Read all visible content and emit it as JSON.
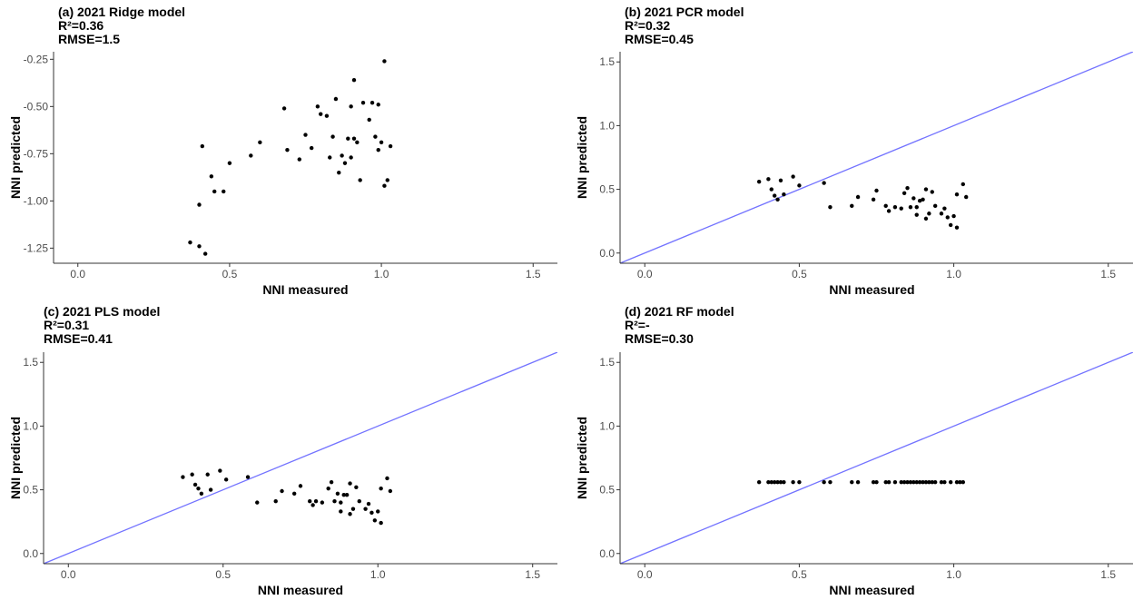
{
  "colors": {
    "points": "#000000",
    "reference_line": "#7373ff",
    "axis": "#333333",
    "tick_text": "#4d4d4d"
  },
  "chart_data": [
    {
      "type": "scatter",
      "title": "(a) 2021 Ridge model",
      "r2": "R²=0.36",
      "rmse": "RMSE=1.5",
      "xlabel": "NNI measured",
      "ylabel": "NNI predicted",
      "xlim": [
        -0.08,
        1.58
      ],
      "ylim": [
        -1.33,
        -0.21
      ],
      "x_ticks": [
        0.0,
        0.5,
        1.0,
        1.5
      ],
      "x_tick_labels": [
        "0.0",
        "0.5",
        "1.0",
        "1.5"
      ],
      "y_ticks": [
        -1.25,
        -1.0,
        -0.75,
        -0.5,
        -0.25
      ],
      "y_tick_labels": [
        "-1.25",
        "-1.00",
        "-0.75",
        "-0.50",
        "-0.25"
      ],
      "reference_line": false,
      "grid": false,
      "points": [
        [
          0.37,
          -1.22
        ],
        [
          0.4,
          -1.24
        ],
        [
          0.42,
          -1.28
        ],
        [
          0.4,
          -1.02
        ],
        [
          0.41,
          -0.71
        ],
        [
          0.44,
          -0.87
        ],
        [
          0.45,
          -0.95
        ],
        [
          0.48,
          -0.95
        ],
        [
          0.5,
          -0.8
        ],
        [
          0.57,
          -0.76
        ],
        [
          0.6,
          -0.69
        ],
        [
          0.68,
          -0.51
        ],
        [
          0.69,
          -0.73
        ],
        [
          0.73,
          -0.78
        ],
        [
          0.75,
          -0.65
        ],
        [
          0.77,
          -0.72
        ],
        [
          0.79,
          -0.5
        ],
        [
          0.8,
          -0.54
        ],
        [
          0.82,
          -0.55
        ],
        [
          0.83,
          -0.77
        ],
        [
          0.84,
          -0.66
        ],
        [
          0.85,
          -0.46
        ],
        [
          0.86,
          -0.85
        ],
        [
          0.87,
          -0.76
        ],
        [
          0.88,
          -0.8
        ],
        [
          0.89,
          -0.67
        ],
        [
          0.9,
          -0.5
        ],
        [
          0.9,
          -0.77
        ],
        [
          0.91,
          -0.36
        ],
        [
          0.91,
          -0.67
        ],
        [
          0.92,
          -0.69
        ],
        [
          0.93,
          -0.89
        ],
        [
          0.94,
          -0.48
        ],
        [
          0.96,
          -0.57
        ],
        [
          0.97,
          -0.48
        ],
        [
          0.98,
          -0.66
        ],
        [
          0.99,
          -0.49
        ],
        [
          0.99,
          -0.73
        ],
        [
          1.0,
          -0.69
        ],
        [
          1.01,
          -0.26
        ],
        [
          1.01,
          -0.92
        ],
        [
          1.02,
          -0.89
        ],
        [
          1.03,
          -0.71
        ]
      ]
    },
    {
      "type": "scatter",
      "title": "(b) 2021 PCR model",
      "r2": "R²=0.32",
      "rmse": "RMSE=0.45",
      "xlabel": "NNI measured",
      "ylabel": "NNI predicted",
      "xlim": [
        -0.08,
        1.58
      ],
      "ylim": [
        -0.08,
        1.58
      ],
      "x_ticks": [
        0.0,
        0.5,
        1.0,
        1.5
      ],
      "x_tick_labels": [
        "0.0",
        "0.5",
        "1.0",
        "1.5"
      ],
      "y_ticks": [
        0.0,
        0.5,
        1.0,
        1.5
      ],
      "y_tick_labels": [
        "0.0",
        "0.5",
        "1.0",
        "1.5"
      ],
      "reference_line": true,
      "grid": false,
      "points": [
        [
          0.37,
          0.56
        ],
        [
          0.4,
          0.58
        ],
        [
          0.41,
          0.5
        ],
        [
          0.42,
          0.45
        ],
        [
          0.43,
          0.42
        ],
        [
          0.44,
          0.57
        ],
        [
          0.45,
          0.46
        ],
        [
          0.48,
          0.6
        ],
        [
          0.5,
          0.53
        ],
        [
          0.58,
          0.55
        ],
        [
          0.6,
          0.36
        ],
        [
          0.67,
          0.37
        ],
        [
          0.69,
          0.44
        ],
        [
          0.74,
          0.42
        ],
        [
          0.75,
          0.49
        ],
        [
          0.78,
          0.37
        ],
        [
          0.79,
          0.33
        ],
        [
          0.81,
          0.36
        ],
        [
          0.83,
          0.35
        ],
        [
          0.84,
          0.47
        ],
        [
          0.85,
          0.51
        ],
        [
          0.86,
          0.36
        ],
        [
          0.87,
          0.43
        ],
        [
          0.88,
          0.3
        ],
        [
          0.88,
          0.36
        ],
        [
          0.89,
          0.41
        ],
        [
          0.9,
          0.42
        ],
        [
          0.91,
          0.27
        ],
        [
          0.91,
          0.5
        ],
        [
          0.92,
          0.31
        ],
        [
          0.93,
          0.48
        ],
        [
          0.94,
          0.37
        ],
        [
          0.96,
          0.31
        ],
        [
          0.97,
          0.35
        ],
        [
          0.98,
          0.28
        ],
        [
          0.99,
          0.22
        ],
        [
          1.0,
          0.29
        ],
        [
          1.01,
          0.2
        ],
        [
          1.01,
          0.46
        ],
        [
          1.03,
          0.54
        ],
        [
          1.04,
          0.44
        ]
      ]
    },
    {
      "type": "scatter",
      "title": "(c) 2021 PLS model",
      "r2": "R²=0.31",
      "rmse": "RMSE=0.41",
      "xlabel": "NNI measured",
      "ylabel": "NNI predicted",
      "xlim": [
        -0.08,
        1.58
      ],
      "ylim": [
        -0.08,
        1.58
      ],
      "x_ticks": [
        0.0,
        0.5,
        1.0,
        1.5
      ],
      "x_tick_labels": [
        "0.0",
        "0.5",
        "1.0",
        "1.5"
      ],
      "y_ticks": [
        0.0,
        0.5,
        1.0,
        1.5
      ],
      "y_tick_labels": [
        "0.0",
        "0.5",
        "1.0",
        "1.5"
      ],
      "reference_line": true,
      "grid": false,
      "points": [
        [
          0.37,
          0.6
        ],
        [
          0.4,
          0.62
        ],
        [
          0.41,
          0.54
        ],
        [
          0.42,
          0.51
        ],
        [
          0.43,
          0.47
        ],
        [
          0.45,
          0.62
        ],
        [
          0.46,
          0.5
        ],
        [
          0.49,
          0.65
        ],
        [
          0.51,
          0.58
        ],
        [
          0.58,
          0.6
        ],
        [
          0.61,
          0.4
        ],
        [
          0.67,
          0.41
        ],
        [
          0.69,
          0.49
        ],
        [
          0.73,
          0.47
        ],
        [
          0.75,
          0.53
        ],
        [
          0.78,
          0.41
        ],
        [
          0.79,
          0.38
        ],
        [
          0.8,
          0.41
        ],
        [
          0.82,
          0.4
        ],
        [
          0.84,
          0.51
        ],
        [
          0.85,
          0.56
        ],
        [
          0.86,
          0.41
        ],
        [
          0.87,
          0.47
        ],
        [
          0.88,
          0.33
        ],
        [
          0.88,
          0.4
        ],
        [
          0.89,
          0.46
        ],
        [
          0.9,
          0.46
        ],
        [
          0.91,
          0.31
        ],
        [
          0.91,
          0.55
        ],
        [
          0.92,
          0.35
        ],
        [
          0.93,
          0.52
        ],
        [
          0.94,
          0.41
        ],
        [
          0.96,
          0.35
        ],
        [
          0.97,
          0.39
        ],
        [
          0.98,
          0.32
        ],
        [
          0.99,
          0.26
        ],
        [
          1.0,
          0.33
        ],
        [
          1.01,
          0.24
        ],
        [
          1.01,
          0.51
        ],
        [
          1.03,
          0.59
        ],
        [
          1.04,
          0.49
        ]
      ]
    },
    {
      "type": "scatter",
      "title": "(d) 2021 RF model",
      "r2": "R²=-",
      "rmse": "RMSE=0.30",
      "xlabel": "NNI measured",
      "ylabel": "NNI predicted",
      "xlim": [
        -0.08,
        1.58
      ],
      "ylim": [
        -0.08,
        1.58
      ],
      "x_ticks": [
        0.0,
        0.5,
        1.0,
        1.5
      ],
      "x_tick_labels": [
        "0.0",
        "0.5",
        "1.0",
        "1.5"
      ],
      "y_ticks": [
        0.0,
        0.5,
        1.0,
        1.5
      ],
      "y_tick_labels": [
        "0.0",
        "0.5",
        "1.0",
        "1.5"
      ],
      "reference_line": true,
      "grid": false,
      "points": [
        [
          0.37,
          0.56
        ],
        [
          0.4,
          0.56
        ],
        [
          0.41,
          0.56
        ],
        [
          0.42,
          0.56
        ],
        [
          0.43,
          0.56
        ],
        [
          0.44,
          0.56
        ],
        [
          0.45,
          0.56
        ],
        [
          0.48,
          0.56
        ],
        [
          0.5,
          0.56
        ],
        [
          0.58,
          0.56
        ],
        [
          0.6,
          0.56
        ],
        [
          0.67,
          0.56
        ],
        [
          0.69,
          0.56
        ],
        [
          0.74,
          0.56
        ],
        [
          0.75,
          0.56
        ],
        [
          0.78,
          0.56
        ],
        [
          0.79,
          0.56
        ],
        [
          0.81,
          0.56
        ],
        [
          0.83,
          0.56
        ],
        [
          0.84,
          0.56
        ],
        [
          0.85,
          0.56
        ],
        [
          0.86,
          0.56
        ],
        [
          0.87,
          0.56
        ],
        [
          0.88,
          0.56
        ],
        [
          0.89,
          0.56
        ],
        [
          0.9,
          0.56
        ],
        [
          0.91,
          0.56
        ],
        [
          0.92,
          0.56
        ],
        [
          0.93,
          0.56
        ],
        [
          0.94,
          0.56
        ],
        [
          0.96,
          0.56
        ],
        [
          0.97,
          0.56
        ],
        [
          0.99,
          0.56
        ],
        [
          1.01,
          0.56
        ],
        [
          1.02,
          0.56
        ],
        [
          1.03,
          0.56
        ]
      ]
    }
  ]
}
